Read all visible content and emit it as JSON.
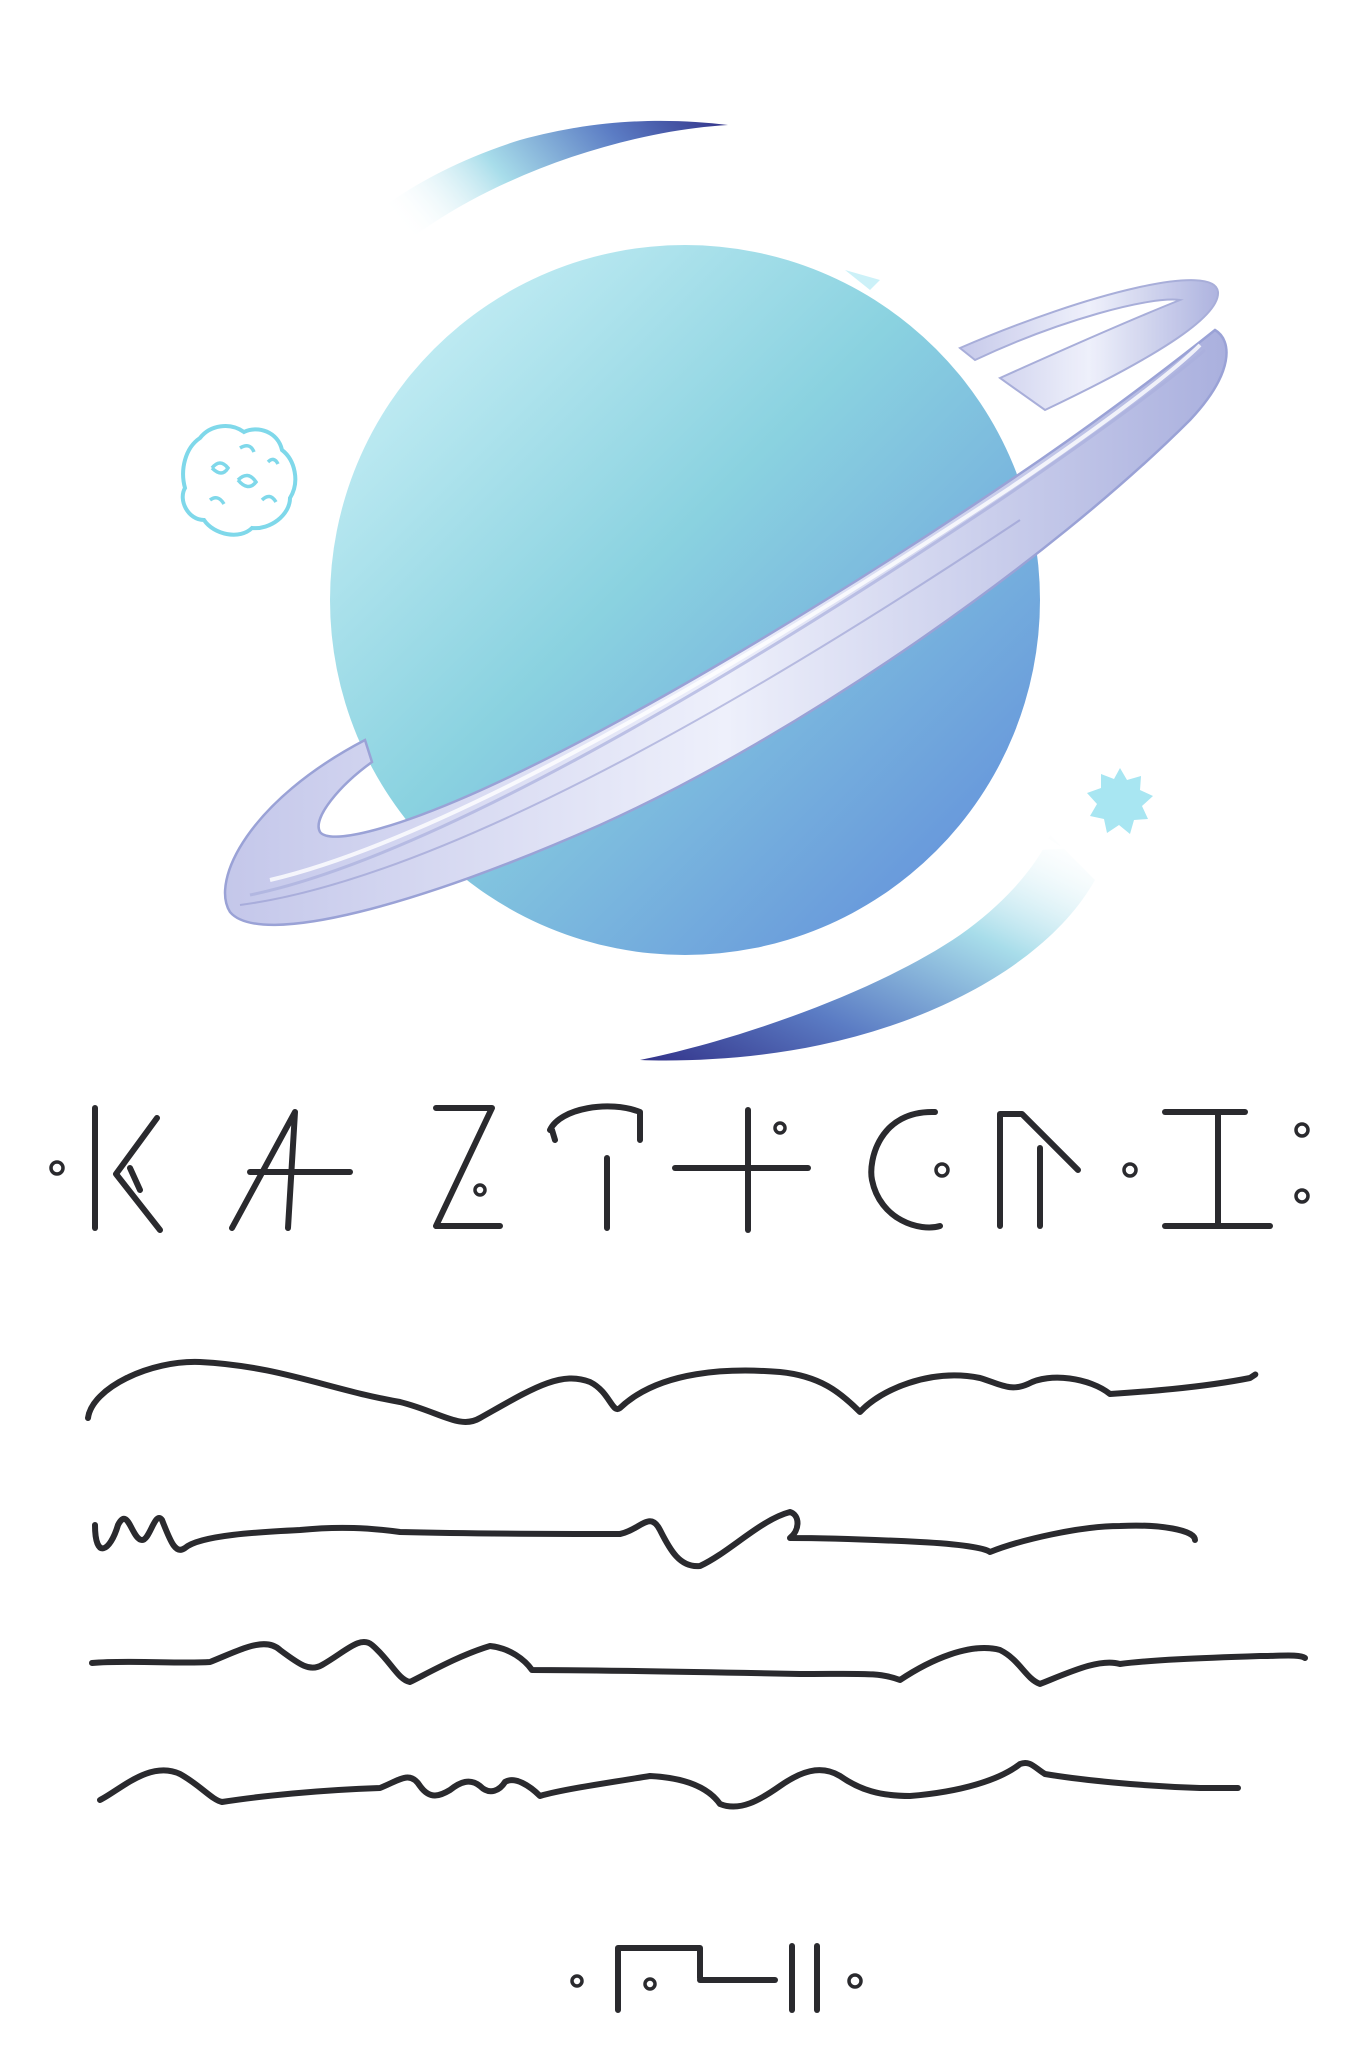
{
  "illustration": {
    "subject": "planet-with-ring",
    "palette": {
      "planet_light": "#d5f5fa",
      "planet_mid": "#8ad2e0",
      "planet_dark": "#5d86da",
      "ring_light": "#eef0fb",
      "ring_dark": "#9aa2d6",
      "trail_dark": "#33338a",
      "trail_mid": "#5b7cc4",
      "asteroid_outline": "#7fd8ea",
      "star_fill": "#a8e6f2",
      "ink": "#2a2a2e",
      "background": "#ffffff"
    }
  },
  "title_script": {
    "kind": "constructed-script-glyphs",
    "glyph_count": 13
  },
  "body_script": {
    "kind": "handwritten-squiggle-lines",
    "line_count": 4
  },
  "signature_script": {
    "kind": "constructed-script-glyphs",
    "glyph_count": 5
  }
}
